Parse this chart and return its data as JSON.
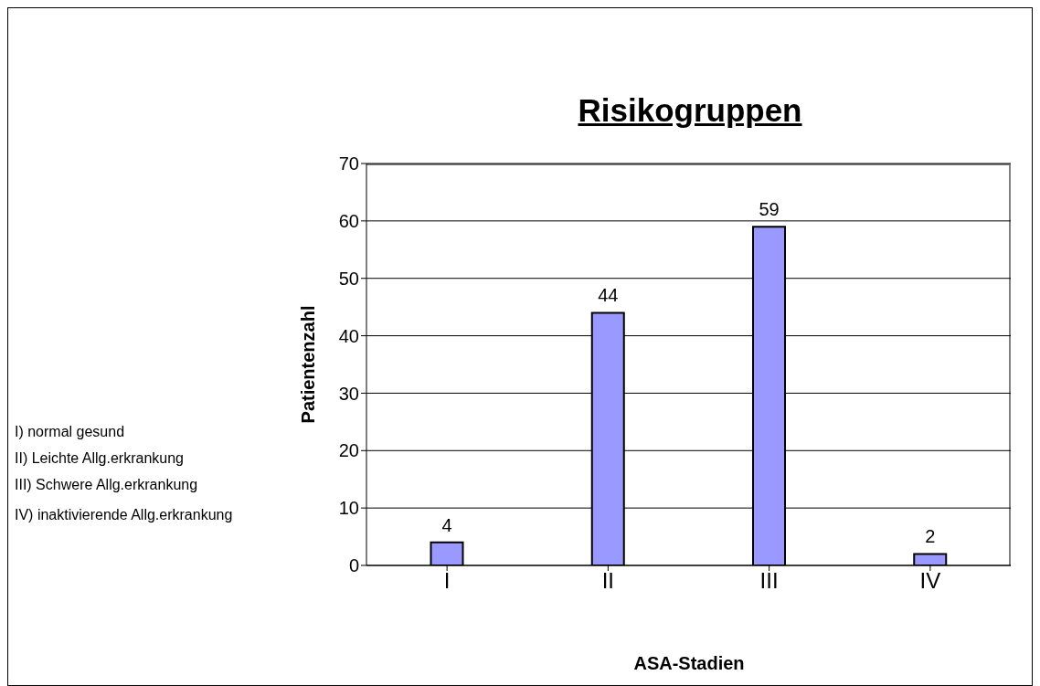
{
  "chart_data": {
    "type": "bar",
    "title": "Risikogruppen",
    "xlabel": "ASA-Stadien",
    "ylabel": "Patientenzahl",
    "categories": [
      "I",
      "II",
      "III",
      "IV"
    ],
    "values": [
      4,
      44,
      59,
      2
    ],
    "color": "#9999ff",
    "ylim": [
      0,
      70
    ],
    "yticks": [
      0,
      10,
      20,
      30,
      40,
      50,
      60,
      70
    ],
    "grid": "y",
    "data_labels": true,
    "annotations": [
      "I) normal gesund",
      "II) Leichte Allg.erkrankung",
      "III) Schwere Allg.erkrankung",
      "IV) inaktivierende Allg.erkrankung"
    ]
  }
}
